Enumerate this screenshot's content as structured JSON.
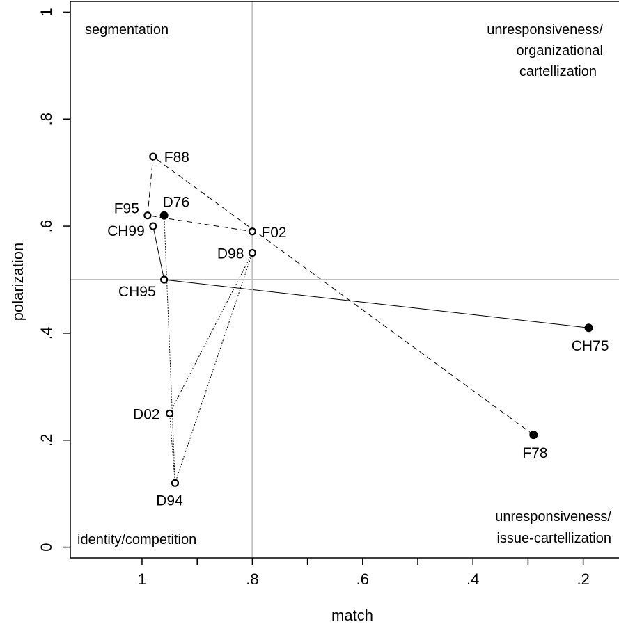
{
  "chart_data": {
    "type": "scatter",
    "title": "",
    "xlabel": "match",
    "ylabel": "polarization",
    "xlim": [
      1.13,
      0.12
    ],
    "ylim": [
      -0.02,
      1.02
    ],
    "x_reversed": true,
    "x_ticks": [
      1,
      0.9,
      0.8,
      0.7,
      0.6,
      0.5,
      0.4,
      0.3,
      0.2
    ],
    "x_tick_labels": [
      "1",
      "",
      ".8",
      "",
      ".6",
      "",
      ".4",
      "",
      ".2"
    ],
    "y_ticks": [
      0,
      0.2,
      0.4,
      0.6,
      0.8,
      1
    ],
    "y_tick_labels": [
      "0",
      ".2",
      ".4",
      ".6",
      ".8",
      "1"
    ],
    "reference_lines": {
      "x": 0.8,
      "y": 0.5,
      "color": "#c0c0c0"
    },
    "grid": false,
    "quadrant_labels": {
      "top_left": [
        "segmentation"
      ],
      "top_right": [
        "unresponsiveness/",
        "organizational",
        "cartellization"
      ],
      "bottom_left": [
        "identity/competition"
      ],
      "bottom_right": [
        "unresponsiveness/",
        "issue-cartellization"
      ]
    },
    "points": [
      {
        "label": "F88",
        "x": 0.98,
        "y": 0.73,
        "filled": false
      },
      {
        "label": "F95",
        "x": 0.99,
        "y": 0.62,
        "filled": false
      },
      {
        "label": "D76",
        "x": 0.96,
        "y": 0.62,
        "filled": true
      },
      {
        "label": "CH99",
        "x": 0.98,
        "y": 0.6,
        "filled": false
      },
      {
        "label": "F02",
        "x": 0.8,
        "y": 0.59,
        "filled": false
      },
      {
        "label": "D98",
        "x": 0.8,
        "y": 0.55,
        "filled": false
      },
      {
        "label": "CH95",
        "x": 0.96,
        "y": 0.5,
        "filled": false
      },
      {
        "label": "CH75",
        "x": 0.19,
        "y": 0.41,
        "filled": true
      },
      {
        "label": "D02",
        "x": 0.95,
        "y": 0.25,
        "filled": false
      },
      {
        "label": "F78",
        "x": 0.29,
        "y": 0.21,
        "filled": true
      },
      {
        "label": "D94",
        "x": 0.94,
        "y": 0.12,
        "filled": false
      }
    ],
    "series": [
      {
        "line_style": "dashed",
        "points": [
          "F78",
          "F88",
          "F95",
          "F02"
        ]
      },
      {
        "line_style": "solid",
        "points": [
          "CH75",
          "CH95",
          "CH99"
        ]
      },
      {
        "line_style": "dotted",
        "points": [
          "D76",
          "D94",
          "D98",
          "D02",
          "D94"
        ]
      }
    ]
  }
}
